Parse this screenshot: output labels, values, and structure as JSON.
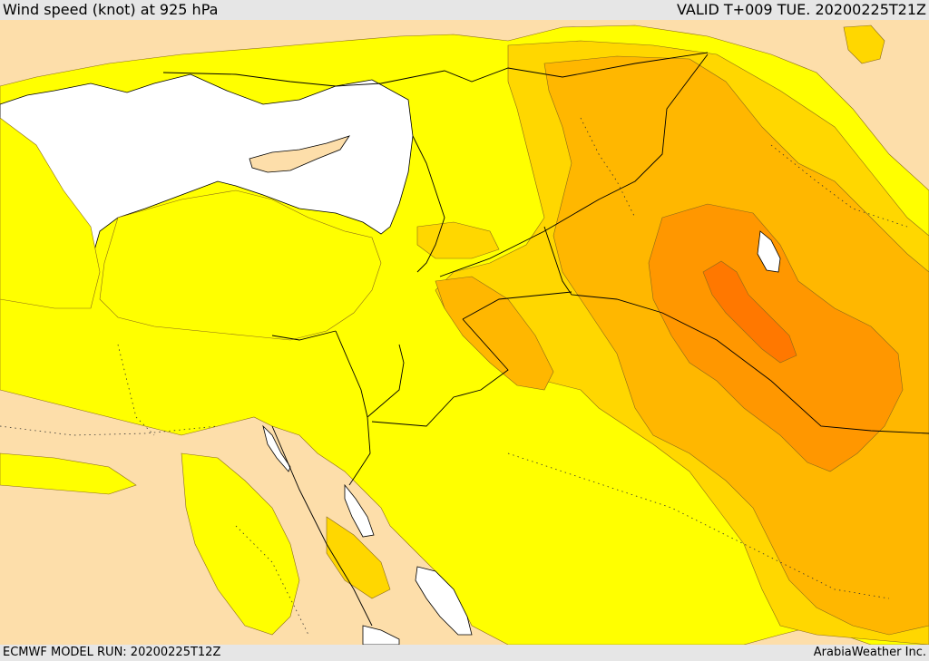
{
  "header": {
    "title": "Wind speed (knot) at 925 hPa",
    "valid_time": "VALID T+009 TUE. 20200225T21Z"
  },
  "footer": {
    "model_run": "ECMWF MODEL RUN: 20200225T12Z",
    "credit": "ArabiaWeather Inc."
  },
  "map": {
    "field": "wind speed 925 hPa",
    "colors": {
      "land_base": "#fddeaa",
      "sea_white": "#ffffff",
      "yellow": "#ffff00",
      "gold": "#ffd700",
      "amber": "#ffb700",
      "orange": "#ff9700",
      "deep_orange": "#ff7800",
      "contour_line": "#8a6a1a",
      "border_line": "#000000"
    }
  }
}
